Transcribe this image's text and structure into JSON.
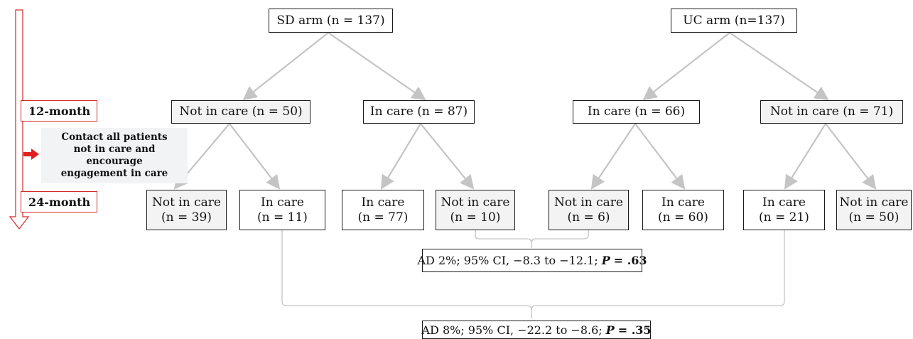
{
  "timeline": {
    "month12": "12-month",
    "month24": "24-month"
  },
  "note": {
    "lines": [
      "Contact all patients",
      "not in care and",
      "encourage",
      "engagement in care"
    ]
  },
  "sd": {
    "arm": "SD arm (n = 137)",
    "not_in_care_12": "Not in care (n = 50)",
    "in_care_12": "In care (n = 87)",
    "a": {
      "label": "Not in care",
      "n": "(n = 39)"
    },
    "b": {
      "label": "In care",
      "n": "(n = 11)"
    },
    "c": {
      "label": "In care",
      "n": "(n = 77)"
    },
    "d": {
      "label": "Not in care",
      "n": "(n = 10)"
    }
  },
  "uc": {
    "arm": "UC arm (n=137)",
    "in_care_12": "In care (n = 66)",
    "not_in_care_12": "Not in care (n = 71)",
    "a": {
      "label": "Not in care",
      "n": "(n = 6)"
    },
    "b": {
      "label": "In care",
      "n": "(n = 60)"
    },
    "c": {
      "label": "In care",
      "n": "(n = 21)"
    },
    "d": {
      "label": "Not in care",
      "n": "(n = 50)"
    }
  },
  "stats": {
    "first": {
      "text": "AD 2%; 95% CI, −8.3 to −12.1;",
      "p_label": "P",
      "p_value": "= .63"
    },
    "second": {
      "text": "AD 8%; 95% CI, −22.2 to −8.6;",
      "p_label": "P",
      "p_value": "= .35"
    }
  },
  "colors": {
    "arrow": "#c4c4c4",
    "timeline": "#d42a2a",
    "note_arrow": "#e02020"
  }
}
